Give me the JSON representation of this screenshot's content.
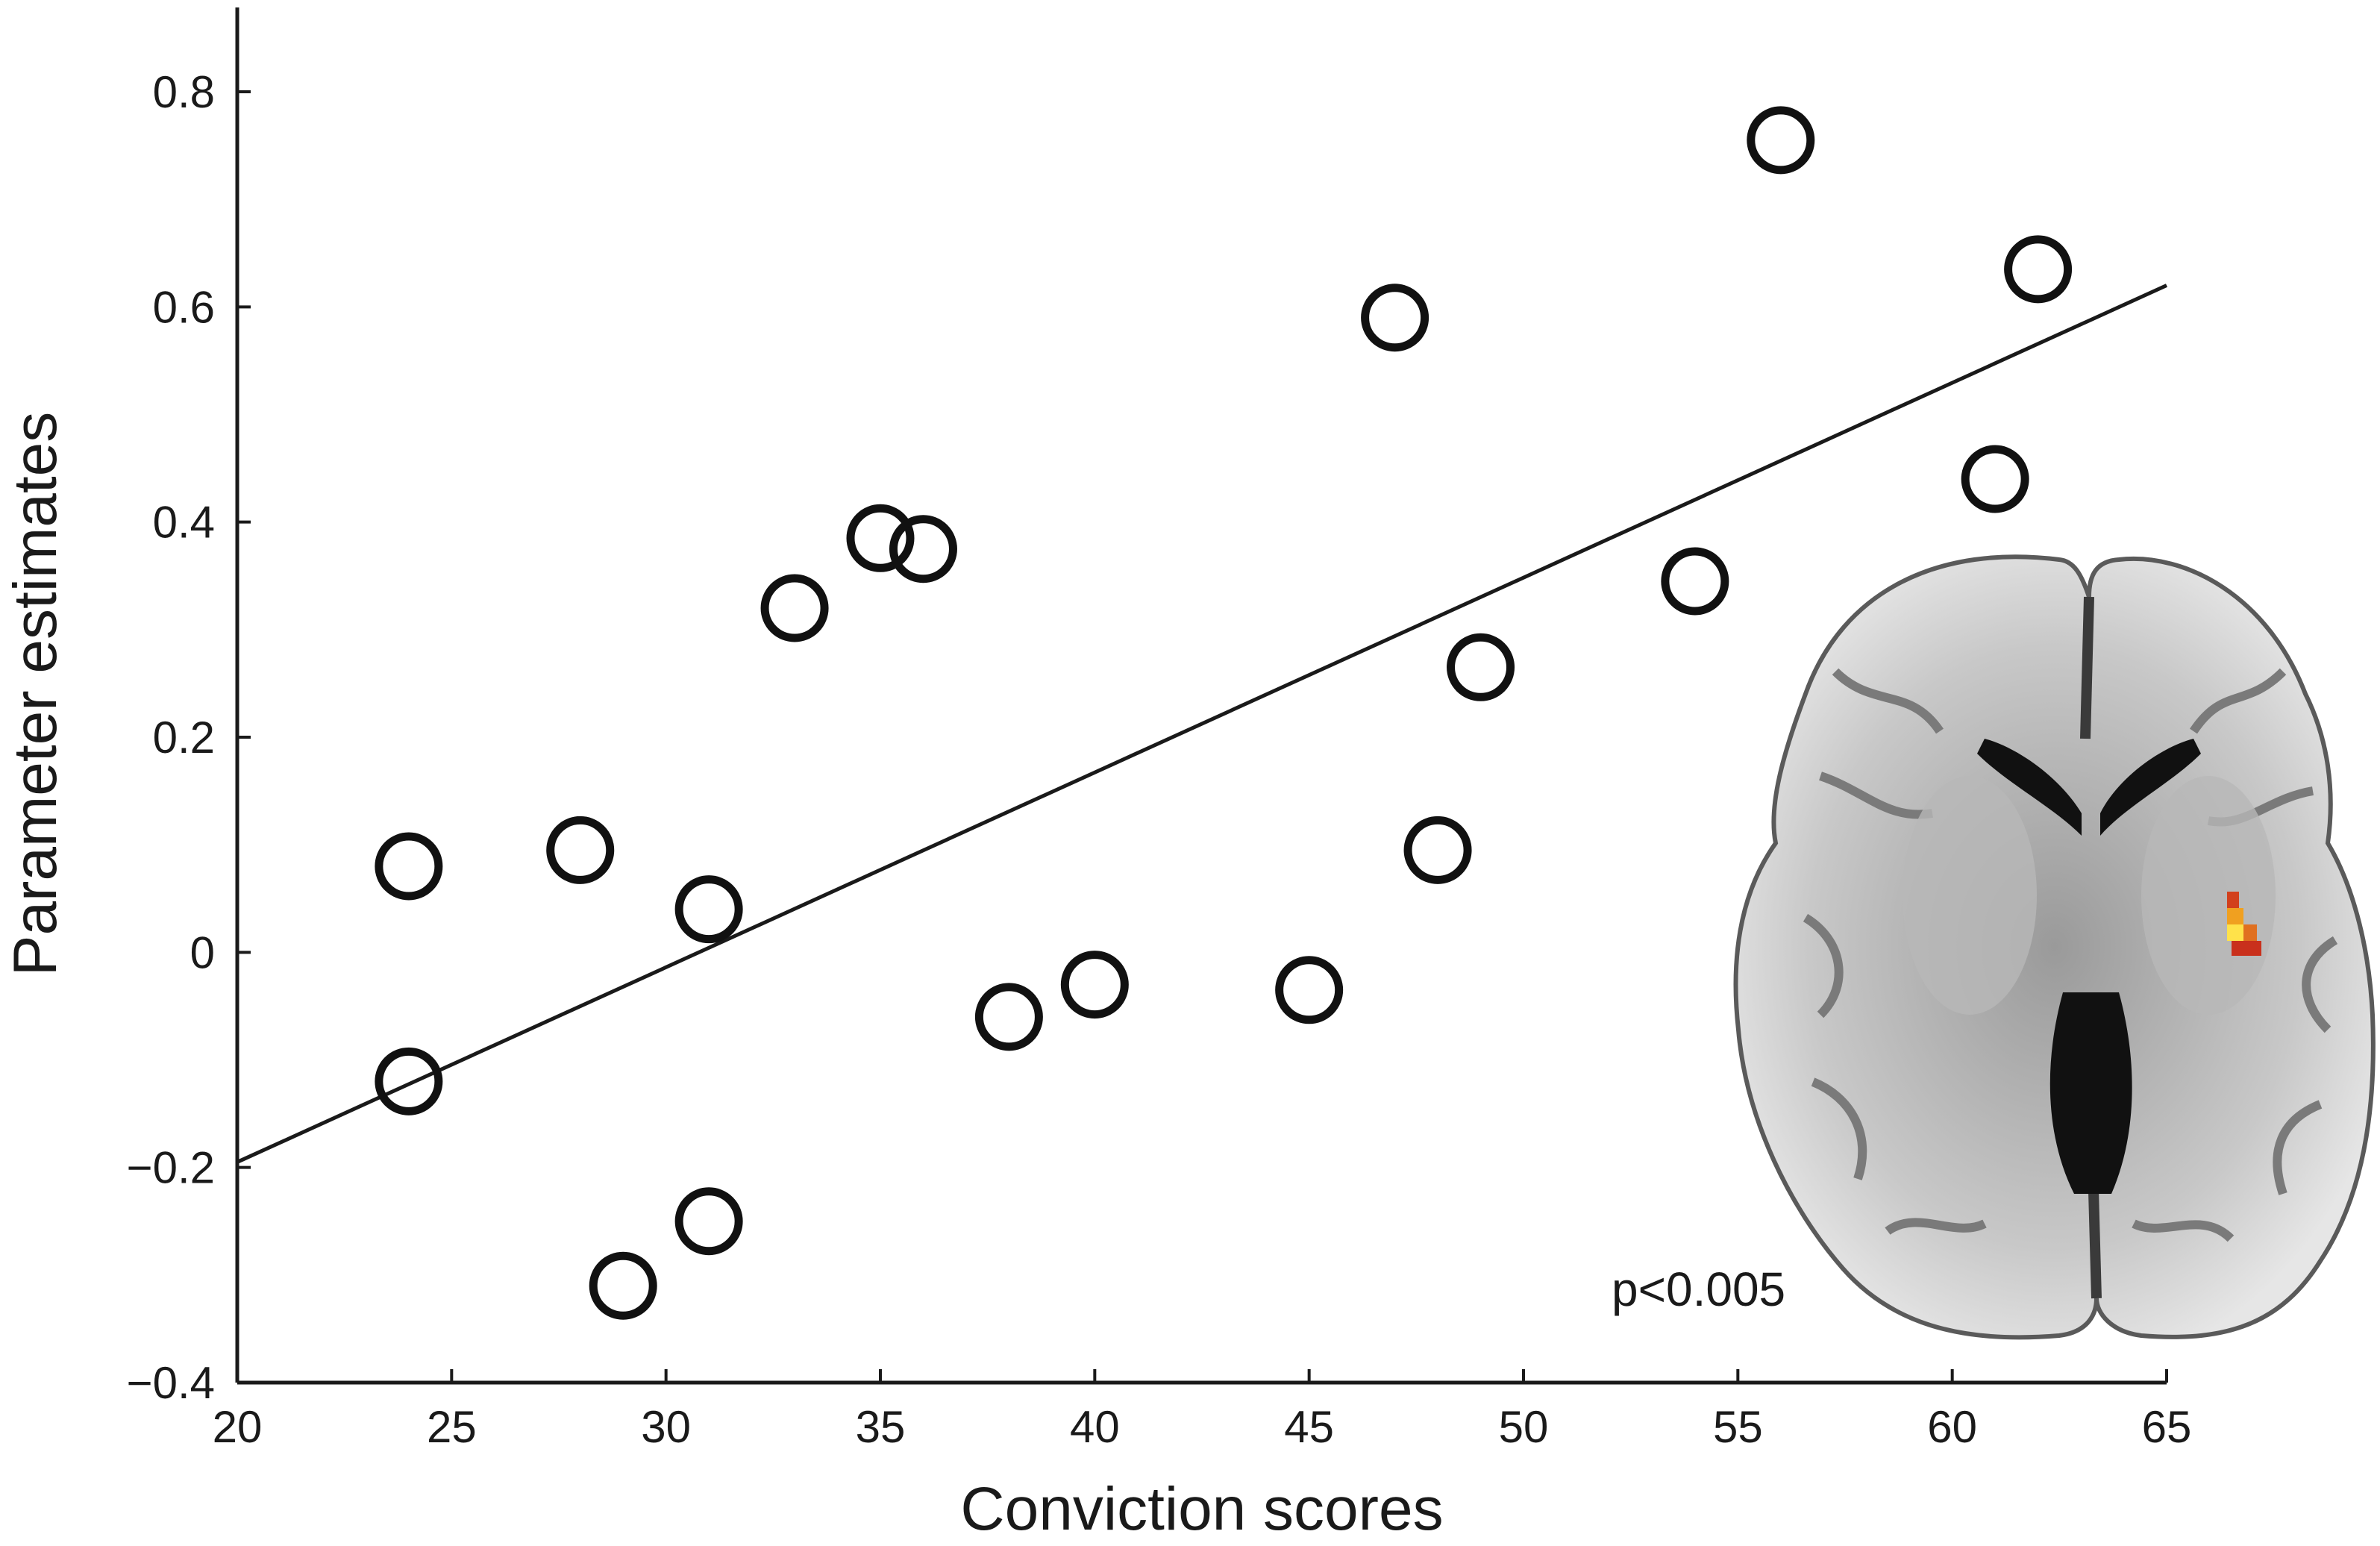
{
  "chart_data": {
    "type": "scatter",
    "xlabel": "Conviction scores",
    "ylabel": "Parameter estimates",
    "xlim": [
      20,
      65
    ],
    "ylim": [
      -0.4,
      0.88
    ],
    "xticks": [
      20,
      25,
      30,
      35,
      40,
      45,
      50,
      55,
      60,
      65
    ],
    "xtick_labels": [
      "20",
      "25",
      "30",
      "35",
      "40",
      "45",
      "50",
      "55",
      "60",
      "65"
    ],
    "yticks": [
      -0.4,
      -0.2,
      0,
      0.2,
      0.4,
      0.6,
      0.8
    ],
    "ytick_labels": [
      "−0.4",
      "−0.2",
      "0",
      "0.2",
      "0.4",
      "0.6",
      "0.8"
    ],
    "grid": false,
    "legend": "none",
    "points": [
      {
        "x": 24,
        "y": 0.08
      },
      {
        "x": 24,
        "y": -0.12
      },
      {
        "x": 28,
        "y": 0.095
      },
      {
        "x": 29,
        "y": -0.31
      },
      {
        "x": 31,
        "y": 0.04
      },
      {
        "x": 31,
        "y": -0.25
      },
      {
        "x": 33,
        "y": 0.32
      },
      {
        "x": 35,
        "y": 0.385
      },
      {
        "x": 36,
        "y": 0.375
      },
      {
        "x": 38,
        "y": -0.06
      },
      {
        "x": 40,
        "y": -0.03
      },
      {
        "x": 45,
        "y": -0.035
      },
      {
        "x": 47,
        "y": 0.59
      },
      {
        "x": 48,
        "y": 0.095
      },
      {
        "x": 49,
        "y": 0.265
      },
      {
        "x": 54,
        "y": 0.345
      },
      {
        "x": 56,
        "y": 0.755
      },
      {
        "x": 61,
        "y": 0.44
      },
      {
        "x": 62,
        "y": 0.635
      }
    ],
    "fit_line": {
      "x": [
        20,
        65
      ],
      "y": [
        -0.195,
        0.62
      ]
    },
    "inset": {
      "kind": "axial brain slice",
      "highlight_colors": [
        "#c9301c",
        "#f0a020",
        "#ffe24a"
      ]
    },
    "annotations": [
      "p<0.005"
    ]
  }
}
